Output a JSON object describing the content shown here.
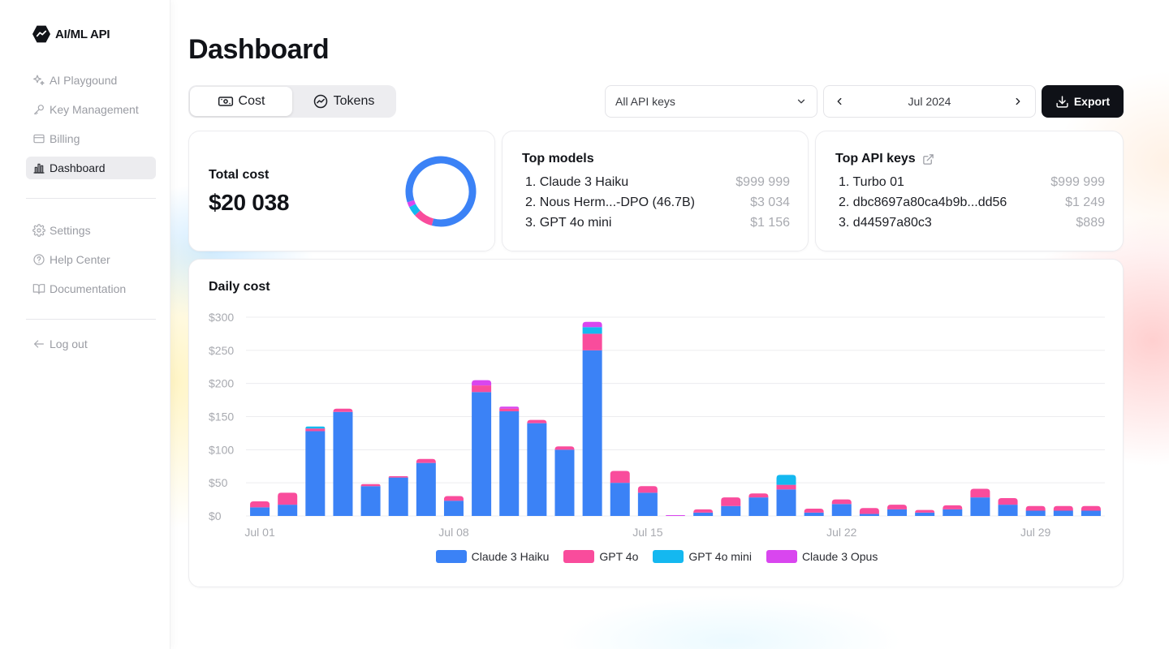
{
  "app": {
    "name": "AI/ML API"
  },
  "sidebar": {
    "items": [
      {
        "label": "AI Playgound",
        "icon": "sparkles-icon"
      },
      {
        "label": "Key Management",
        "icon": "key-icon"
      },
      {
        "label": "Billing",
        "icon": "credit-card-icon"
      },
      {
        "label": "Dashboard",
        "icon": "bar-chart-icon",
        "active": true
      }
    ],
    "secondary": [
      {
        "label": "Settings",
        "icon": "gear-icon"
      },
      {
        "label": "Help Center",
        "icon": "help-circle-icon"
      },
      {
        "label": "Documentation",
        "icon": "book-icon"
      }
    ],
    "logout": {
      "label": "Log out",
      "icon": "arrow-left-icon"
    }
  },
  "header": {
    "title": "Dashboard"
  },
  "toggle": {
    "cost_label": "Cost",
    "tokens_label": "Tokens",
    "selected": "Cost"
  },
  "filters": {
    "api_key_select": "All API keys",
    "month": "Jul 2024",
    "export_label": "Export"
  },
  "total_cost": {
    "label": "Total cost",
    "value": "$20 038",
    "donut_segments": [
      {
        "name": "Claude 3 Haiku",
        "fraction": 0.84,
        "color": "#3b82f6"
      },
      {
        "name": "GPT 4o",
        "fraction": 0.09,
        "color": "#f94c9c"
      },
      {
        "name": "GPT 4o mini",
        "fraction": 0.045,
        "color": "#14b8f0"
      },
      {
        "name": "Claude 3 Opus",
        "fraction": 0.025,
        "color": "#d946ef"
      }
    ]
  },
  "top_models": {
    "title": "Top models",
    "items": [
      {
        "rank": "1.",
        "name": "Claude 3 Haiku",
        "amount": "$999 999"
      },
      {
        "rank": "2.",
        "name": "Nous Herm...-DPO (46.7B)",
        "amount": "$3 034"
      },
      {
        "rank": "3.",
        "name": "GPT 4o mini",
        "amount": "$1 156"
      }
    ]
  },
  "top_api_keys": {
    "title": "Top API keys",
    "icon": "external-link-icon",
    "items": [
      {
        "rank": "1.",
        "name": "Turbo 01",
        "amount": "$999 999"
      },
      {
        "rank": "2.",
        "name": "dbc8697a80ca4b9b...dd56",
        "amount": "$1 249"
      },
      {
        "rank": "3.",
        "name": "d44597a80c3",
        "amount": "$889"
      }
    ]
  },
  "chart_data": {
    "type": "bar",
    "stacked": true,
    "title": "Daily cost",
    "ylim": [
      0,
      300
    ],
    "yticks": [
      "$0",
      "$50",
      "$100",
      "$150",
      "$200",
      "$250",
      "$300"
    ],
    "ytick_values": [
      0,
      50,
      100,
      150,
      200,
      250,
      300
    ],
    "xtick_labels": [
      {
        "index": 0,
        "label": "Jul 01"
      },
      {
        "index": 7,
        "label": "Jul 08"
      },
      {
        "index": 14,
        "label": "Jul 15"
      },
      {
        "index": 21,
        "label": "Jul 22"
      },
      {
        "index": 28,
        "label": "Jul 29"
      }
    ],
    "grid": true,
    "legend_position": "bottom",
    "categories": [
      "Jul 01",
      "Jul 02",
      "Jul 03",
      "Jul 04",
      "Jul 05",
      "Jul 06",
      "Jul 07",
      "Jul 08",
      "Jul 09",
      "Jul 10",
      "Jul 11",
      "Jul 12",
      "Jul 13",
      "Jul 14",
      "Jul 15",
      "Jul 16",
      "Jul 17",
      "Jul 18",
      "Jul 19",
      "Jul 20",
      "Jul 21",
      "Jul 22",
      "Jul 23",
      "Jul 24",
      "Jul 25",
      "Jul 26",
      "Jul 27",
      "Jul 28",
      "Jul 29",
      "Jul 30",
      "Jul 31"
    ],
    "series": [
      {
        "name": "Claude 3 Haiku",
        "color": "#3b82f6",
        "values": [
          13,
          17,
          128,
          157,
          45,
          58,
          80,
          23,
          187,
          158,
          140,
          100,
          250,
          50,
          35,
          0,
          5,
          15,
          28,
          40,
          5,
          18,
          3,
          10,
          5,
          10,
          28,
          17,
          8,
          8,
          8
        ]
      },
      {
        "name": "GPT 4o",
        "color": "#f94c9c",
        "values": [
          9,
          18,
          4,
          5,
          3,
          2,
          6,
          7,
          10,
          4,
          5,
          5,
          25,
          18,
          10,
          0,
          5,
          13,
          6,
          7,
          6,
          7,
          9,
          7,
          4,
          6,
          13,
          10,
          7,
          7,
          7
        ]
      },
      {
        "name": "GPT 4o mini",
        "color": "#14b8f0",
        "values": [
          0,
          0,
          3,
          0,
          0,
          0,
          0,
          0,
          0,
          0,
          0,
          0,
          10,
          0,
          0,
          0,
          0,
          0,
          0,
          15,
          0,
          0,
          0,
          0,
          0,
          0,
          0,
          0,
          0,
          0,
          0
        ]
      },
      {
        "name": "Claude 3 Opus",
        "color": "#d946ef",
        "values": [
          0,
          0,
          0,
          0,
          0,
          0,
          0,
          0,
          8,
          3,
          0,
          0,
          8,
          0,
          0,
          1,
          0,
          0,
          0,
          0,
          0,
          0,
          0,
          0,
          0,
          0,
          0,
          0,
          0,
          0,
          0
        ]
      }
    ]
  }
}
